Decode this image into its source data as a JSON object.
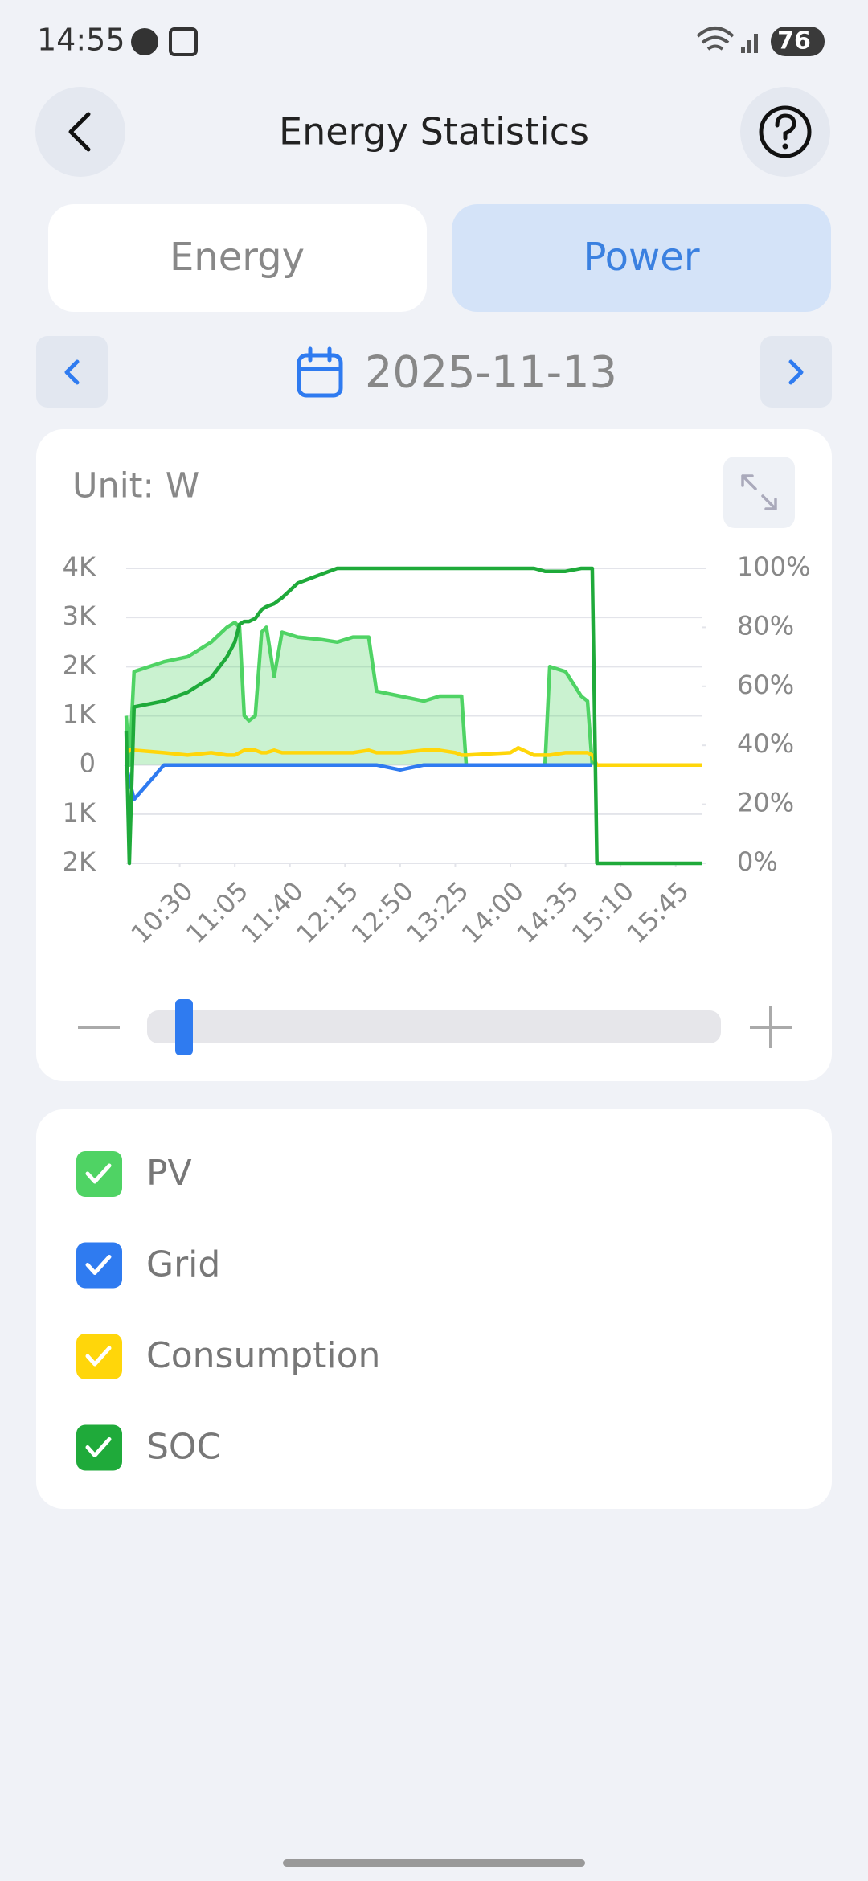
{
  "status_bar": {
    "time": "14:55",
    "battery": "76"
  },
  "header": {
    "title": "Energy Statistics"
  },
  "tabs": [
    "Energy",
    "Power"
  ],
  "date": "2025-11-13",
  "chart_card": {
    "unit": "Unit: W"
  },
  "chart_data": {
    "type": "line",
    "x": [
      "09:56",
      "09:58",
      "10:01",
      "10:20",
      "10:35",
      "10:50",
      "11:00",
      "11:05",
      "11:08",
      "11:11",
      "11:14",
      "11:18",
      "11:22",
      "11:25",
      "11:30",
      "11:35",
      "11:45",
      "12:00",
      "12:10",
      "12:20",
      "12:30",
      "12:35",
      "12:50",
      "13:05",
      "13:15",
      "13:25",
      "13:29",
      "13:32",
      "14:00",
      "14:05",
      "14:15",
      "14:22",
      "14:25",
      "14:35",
      "14:45",
      "14:49",
      "14:52",
      "14:55",
      "15:30",
      "16:02"
    ],
    "xlim": [
      "09:56",
      "16:02"
    ],
    "xticks": [
      "10:30",
      "11:05",
      "11:40",
      "12:15",
      "12:50",
      "13:25",
      "14:00",
      "14:35",
      "15:10",
      "15:45"
    ],
    "ylim": [
      -2000,
      4000
    ],
    "yticks": [
      {
        "value": 4000,
        "label": "4K"
      },
      {
        "value": 3000,
        "label": "3K"
      },
      {
        "value": 2000,
        "label": "2K"
      },
      {
        "value": 1000,
        "label": "1K"
      },
      0,
      {
        "value": -1000,
        "label": "1K"
      },
      {
        "value": -2000,
        "label": "2K"
      }
    ],
    "y2lim": [
      0,
      100
    ],
    "y2ticks": [
      {
        "value": 100,
        "label": "100%"
      },
      {
        "value": 80,
        "label": "80%"
      },
      {
        "value": 60,
        "label": "60%"
      },
      {
        "value": 40,
        "label": "40%"
      },
      {
        "value": 20,
        "label": "20%"
      },
      {
        "value": 0,
        "label": "0%"
      }
    ],
    "grid": true,
    "series": [
      {
        "name": "PV",
        "color": "#4fd364",
        "area": true,
        "values": [
          1000,
          0,
          1900,
          2100,
          2200,
          2500,
          2800,
          2900,
          2800,
          1000,
          900,
          1000,
          2700,
          2800,
          1800,
          2700,
          2600,
          2550,
          2500,
          2600,
          2600,
          1500,
          1400,
          1300,
          1400,
          1400,
          1400,
          0,
          0,
          0,
          0,
          0,
          2000,
          1900,
          1400,
          1300,
          0,
          null,
          null,
          null
        ]
      },
      {
        "name": "Grid",
        "color": "#2f7bf0",
        "values": [
          0,
          -300,
          -700,
          0,
          0,
          0,
          0,
          0,
          0,
          0,
          0,
          0,
          0,
          0,
          0,
          0,
          0,
          0,
          0,
          0,
          0,
          0,
          -100,
          0,
          0,
          0,
          0,
          0,
          0,
          0,
          0,
          0,
          0,
          0,
          0,
          0,
          0,
          null,
          null,
          null
        ]
      },
      {
        "name": "Consumption",
        "color": "#ffd60a",
        "values": [
          200,
          300,
          300,
          250,
          200,
          250,
          200,
          200,
          250,
          300,
          300,
          300,
          250,
          250,
          300,
          250,
          250,
          250,
          250,
          250,
          300,
          250,
          250,
          300,
          300,
          250,
          200,
          200,
          250,
          350,
          200,
          200,
          200,
          250,
          250,
          250,
          200,
          0,
          0,
          0
        ]
      },
      {
        "name": "SOC",
        "color": "#1faa3a",
        "axis": "y2",
        "values": [
          45,
          0,
          53,
          55,
          58,
          63,
          70,
          75,
          81,
          82,
          82,
          83,
          86,
          87,
          88,
          90,
          95,
          98,
          100,
          100,
          100,
          100,
          100,
          100,
          100,
          100,
          100,
          100,
          100,
          100,
          100,
          99,
          99,
          99,
          100,
          100,
          100,
          0,
          0,
          0
        ]
      }
    ]
  }
}
